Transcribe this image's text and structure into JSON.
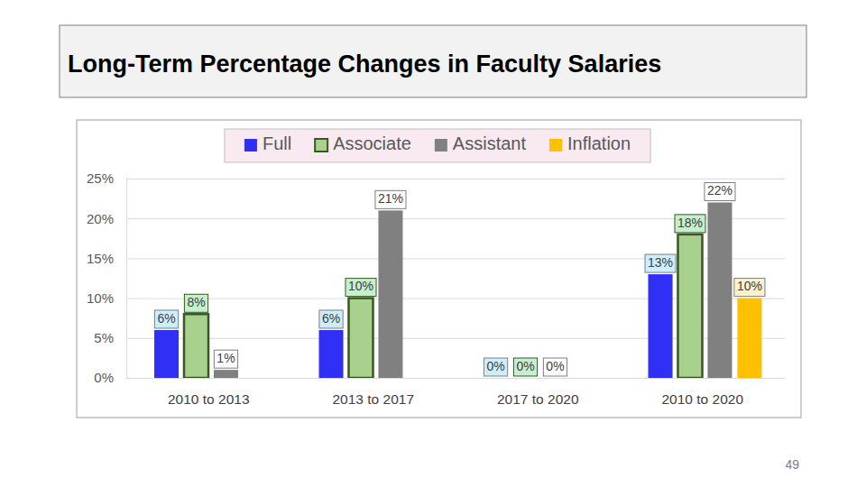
{
  "chart_data": {
    "type": "bar",
    "title": "Long-Term Percentage Changes in Faculty Salaries",
    "categories": [
      "2010 to 2013",
      "2013 to 2017",
      "2017 to 2020",
      "2010 to 2020"
    ],
    "series": [
      {
        "name": "Full",
        "color": "#2f2ff5",
        "values": [
          6,
          6,
          0,
          13
        ],
        "value_labels": [
          "6%",
          "6%",
          "0%",
          "13%"
        ]
      },
      {
        "name": "Associate",
        "color": "#a9d18e",
        "values": [
          8,
          10,
          0,
          18
        ],
        "value_labels": [
          "8%",
          "10%",
          "0%",
          "18%"
        ]
      },
      {
        "name": "Assistant",
        "color": "#808080",
        "values": [
          1,
          21,
          0,
          22
        ],
        "value_labels": [
          "1%",
          "21%",
          "0%",
          "22%"
        ]
      },
      {
        "name": "Inflation",
        "color": "#ffc000",
        "values": [
          null,
          null,
          null,
          10
        ],
        "value_labels": [
          null,
          null,
          null,
          "10%"
        ]
      }
    ],
    "ylim": [
      0,
      25
    ],
    "yticks": [
      {
        "value": 0,
        "label": "0%"
      },
      {
        "value": 5,
        "label": "5%"
      },
      {
        "value": 10,
        "label": "10%"
      },
      {
        "value": 15,
        "label": "15%"
      },
      {
        "value": 20,
        "label": "20%"
      },
      {
        "value": 25,
        "label": "25%"
      }
    ],
    "grid": true,
    "legend": "top",
    "data_labels": true
  },
  "page_number": "49"
}
